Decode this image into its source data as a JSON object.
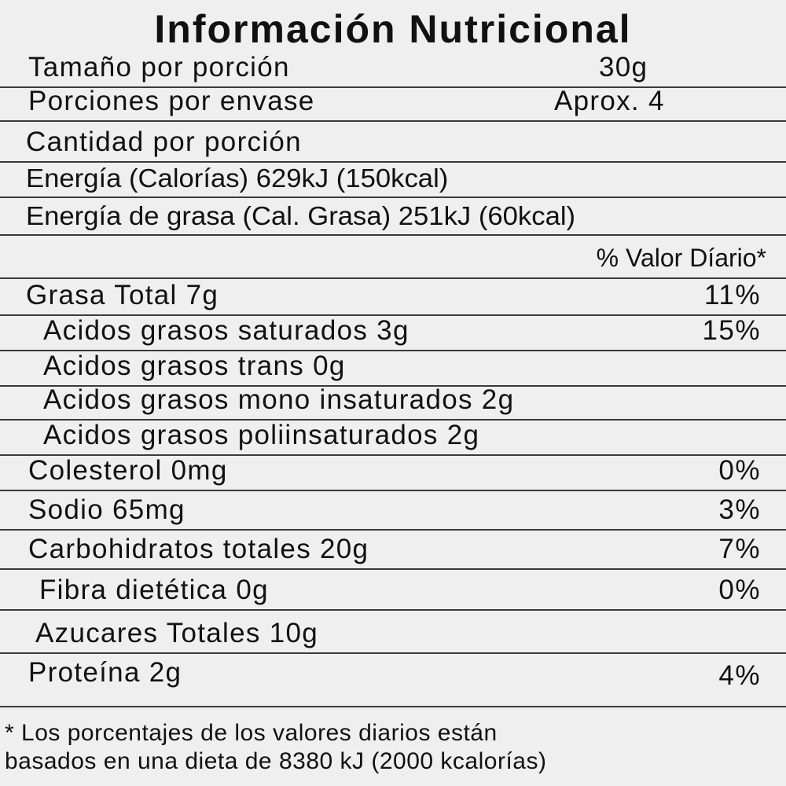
{
  "title": "Información Nutricional",
  "serving_size": {
    "label": "Tamaño por porción",
    "value": "30g"
  },
  "servings": {
    "label": "Porciones por envase",
    "value": "Aprox. 4"
  },
  "amount_per_serving": "Cantidad por porción",
  "energy": "Energía (Calorías) 629kJ (150kcal)",
  "energy_fat": "Energía de grasa (Cal. Grasa) 251kJ (60kcal)",
  "daily_value_header": "% Valor Díario*",
  "nutrients": [
    {
      "label": "Grasa Total 7g",
      "pct": "11%"
    },
    {
      "label": "Acidos grasos saturados 3g",
      "pct": "15%"
    },
    {
      "label": "Acidos grasos trans 0g",
      "pct": ""
    },
    {
      "label": "Acidos grasos mono insaturados 2g",
      "pct": ""
    },
    {
      "label": "Acidos grasos poliinsaturados 2g",
      "pct": ""
    },
    {
      "label": "Colesterol 0mg",
      "pct": "0%"
    },
    {
      "label": "Sodio 65mg",
      "pct": "3%"
    },
    {
      "label": "Carbohidratos totales 20g",
      "pct": "7%"
    },
    {
      "label": "Fibra dietética  0g",
      "pct": "0%"
    },
    {
      "label": "Azucares Totales 10g",
      "pct": ""
    },
    {
      "label": "Proteína 2g",
      "pct": "4%"
    }
  ],
  "footnote": {
    "line1": "* Los porcentajes de los valores diarios están",
    "line2": "basados en una dieta de 8380 kJ (2000 kcalorías)"
  }
}
